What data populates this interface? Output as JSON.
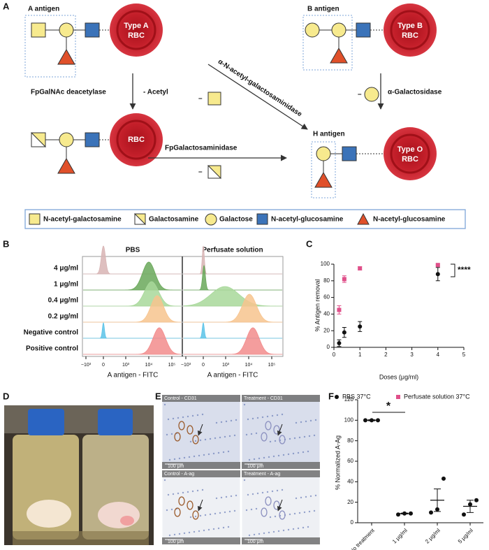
{
  "panel_a": {
    "label": "A",
    "a_antigen": "A antigen",
    "type_a": [
      "Type A",
      "RBC"
    ],
    "b_antigen": "B antigen",
    "type_b": [
      "Type B",
      "RBC"
    ],
    "deacetylase": "FpGalNAc deacetylase",
    "acetyl": "- Acetyl",
    "galnac_ase": "α-N-acetyl-galactosaminidase",
    "galactosidase": "α-Galactosidase",
    "rbc": "RBC",
    "galactosaminidase": "FpGalactosaminidase",
    "h_antigen": "H antigen",
    "type_o": [
      "Type O",
      "RBC"
    ],
    "minus_signs": [
      "–",
      "–",
      "–"
    ],
    "legend": [
      "N-acetyl-galactosamine",
      "Galactosamine",
      "Galactose",
      "N-acetyl-glucosamine",
      "N-acetyl-glucosamine"
    ]
  },
  "panel_b": {
    "label": "B",
    "columns": [
      "PBS",
      "Perfusate solution"
    ],
    "rows": [
      "4 μg/ml",
      "1 μg/ml",
      "0.4 μg/ml",
      "0.2 μg/ml",
      "Negative control",
      "Positive control"
    ],
    "x_tick_labels": [
      "−10³",
      "0",
      "10³",
      "10⁴",
      "10⁵"
    ],
    "x_axis_label": "A antigen - FITC"
  },
  "panel_d": {
    "label": "D"
  },
  "panel_e": {
    "label": "E",
    "tiles": [
      "Control - CD31",
      "Treatment - CD31",
      "Control - A-ag",
      "Treatment - A-ag"
    ],
    "scale_bar": "100 μm"
  },
  "chart_data": [
    {
      "type": "scatter",
      "label": "C",
      "x_label": "Doses (μg/ml)",
      "y_label": "% Antigen removal",
      "xlim": [
        0,
        5
      ],
      "xticks": [
        0,
        1,
        2,
        3,
        4,
        5
      ],
      "ylim": [
        0,
        100
      ],
      "yticks": [
        0,
        20,
        40,
        60,
        80,
        100
      ],
      "annotation": "****",
      "series": [
        {
          "name": "PBS 37°C",
          "color": "#111111",
          "marker": "circle",
          "x": [
            0.2,
            0.4,
            1,
            4
          ],
          "values": [
            5,
            18,
            25,
            88
          ],
          "errors": [
            4,
            6,
            6,
            8
          ]
        },
        {
          "name": "Perfusate solution 37°C",
          "color": "#e0508a",
          "marker": "square",
          "x": [
            0.2,
            0.4,
            1,
            4
          ],
          "values": [
            45,
            82,
            95,
            99
          ],
          "errors": [
            5,
            4,
            2,
            1
          ]
        }
      ]
    },
    {
      "type": "dot",
      "label": "F",
      "y_label": "% Normalized A-Ag",
      "color": "#111111",
      "categories": [
        "No treatment",
        "1 μg/ml",
        "2 μg/ml",
        "5 μg/ml"
      ],
      "ylim": [
        0,
        120
      ],
      "yticks": [
        0,
        20,
        40,
        60,
        80,
        100,
        120
      ],
      "points": [
        [
          100,
          100,
          100
        ],
        [
          8,
          9,
          9
        ],
        [
          10,
          13,
          43
        ],
        [
          8,
          18,
          22
        ]
      ],
      "means": [
        100,
        9,
        22,
        16
      ],
      "errors": [
        0.5,
        0.5,
        11,
        6
      ],
      "annotation": "*"
    }
  ]
}
